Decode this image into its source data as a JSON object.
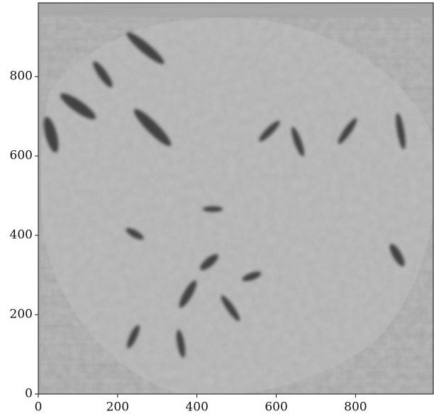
{
  "chart_data": {
    "type": "image",
    "xlim": [
      0,
      996
    ],
    "ylim": [
      0,
      986
    ],
    "xticks": [
      0,
      200,
      400,
      600,
      800
    ],
    "yticks": [
      0,
      200,
      400,
      600,
      800
    ]
  }
}
